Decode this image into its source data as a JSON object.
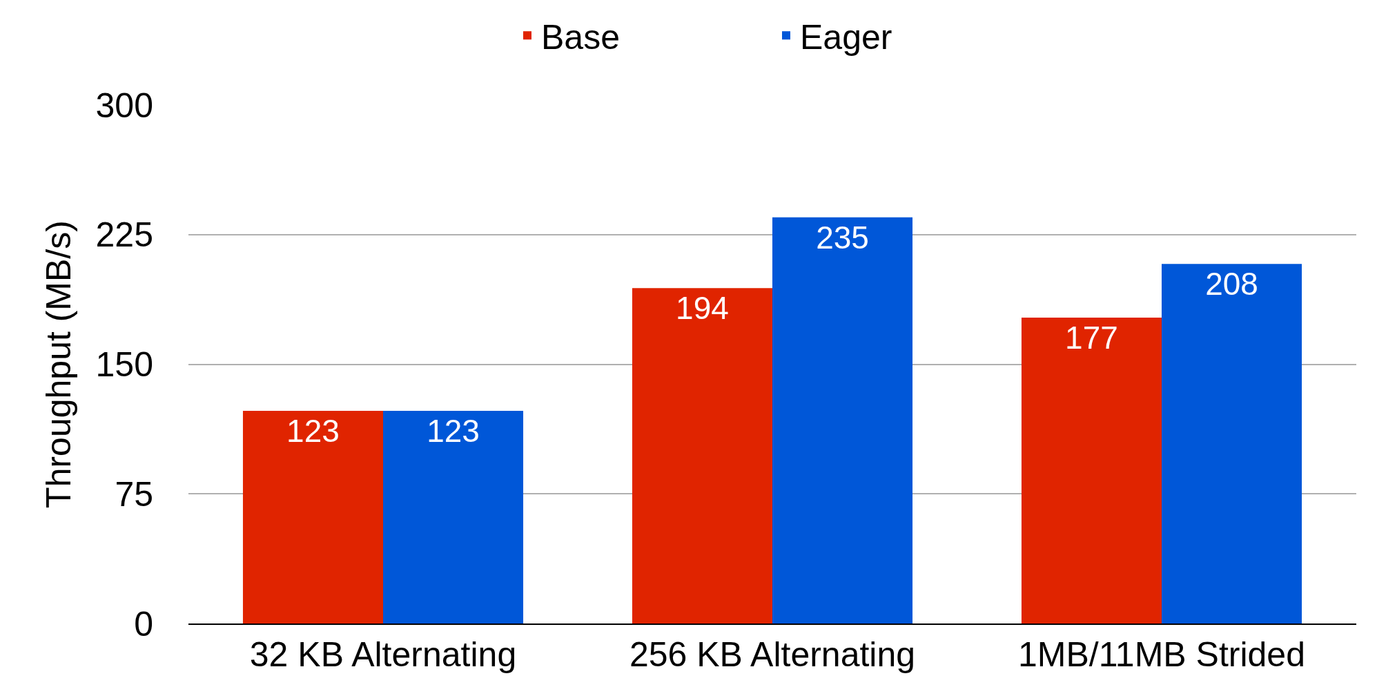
{
  "chart_data": {
    "type": "bar",
    "ylabel": "Throughput (MB/s)",
    "categories": [
      "32 KB Alternating",
      "256 KB Alternating",
      "1MB/11MB Strided"
    ],
    "series": [
      {
        "name": "Base",
        "color": "#e02400",
        "values": [
          123,
          194,
          177
        ]
      },
      {
        "name": "Eager",
        "color": "#0057d8",
        "values": [
          123,
          235,
          208
        ]
      }
    ],
    "ylim": [
      0,
      300
    ],
    "yticks": [
      0,
      75,
      150,
      225,
      300
    ],
    "grid": "y",
    "legend": "top",
    "data_labels": true
  }
}
